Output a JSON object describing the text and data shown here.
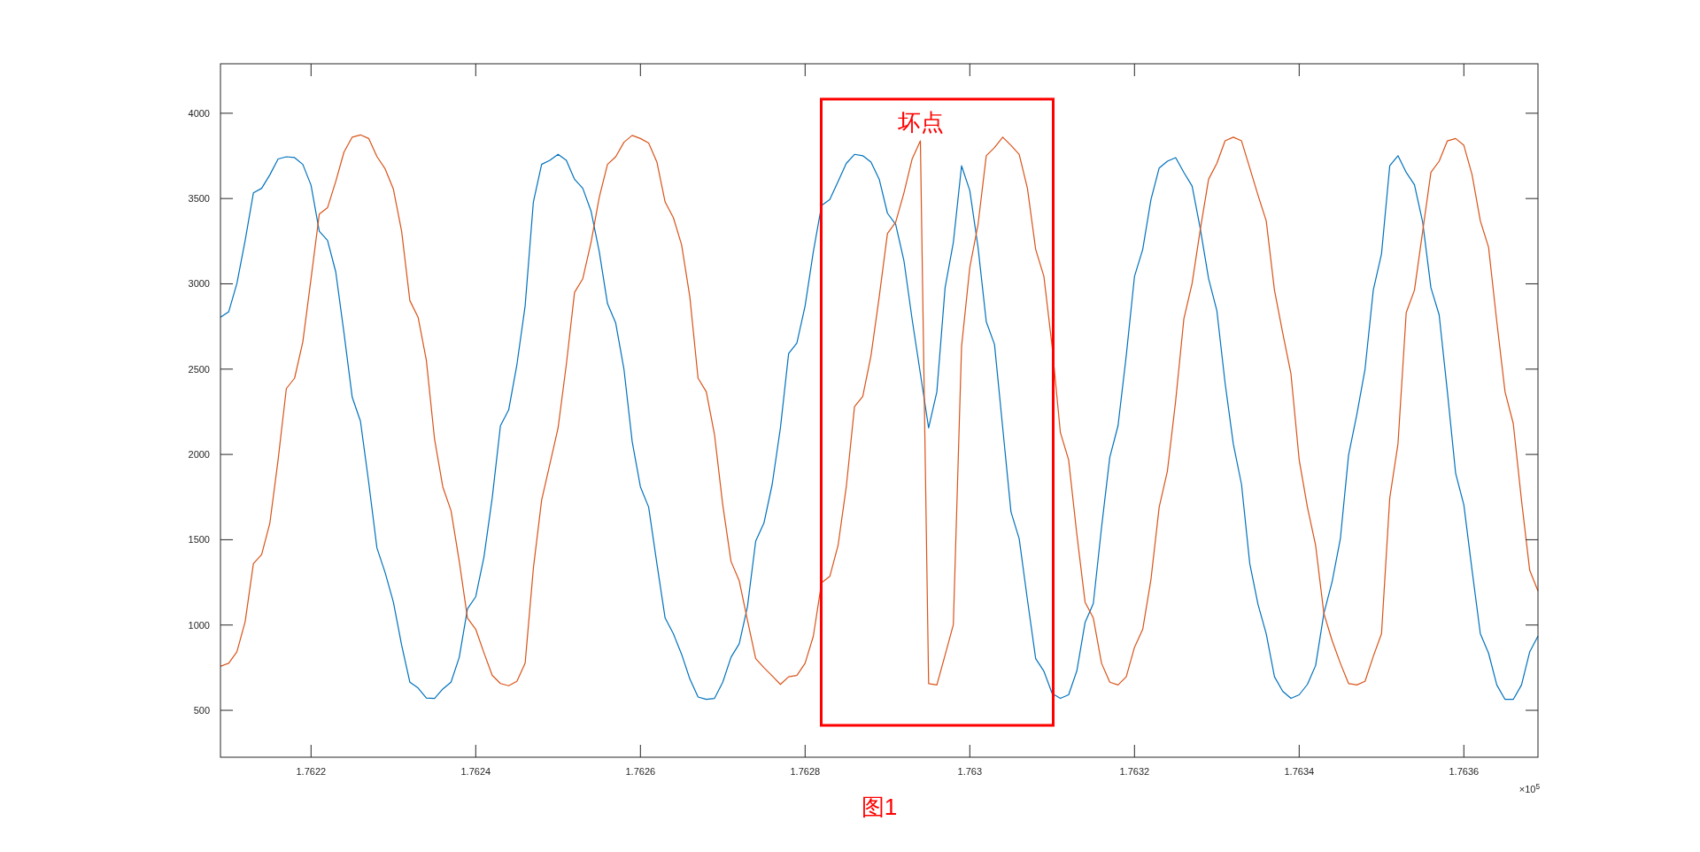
{
  "chart_data": {
    "type": "line",
    "x": [
      1.76209,
      1.7621,
      1.76211,
      1.76212,
      1.76213,
      1.76214,
      1.76215,
      1.76216,
      1.76217,
      1.76218,
      1.76219,
      1.7622,
      1.76221,
      1.76222,
      1.76223,
      1.76224,
      1.76225,
      1.76226,
      1.76227,
      1.76228,
      1.76229,
      1.7623,
      1.76231,
      1.76232,
      1.76233,
      1.76234,
      1.76235,
      1.76236,
      1.76237,
      1.76238,
      1.76239,
      1.7624,
      1.76241,
      1.76242,
      1.76243,
      1.76244,
      1.76245,
      1.76246,
      1.76247,
      1.76248,
      1.76249,
      1.7625,
      1.76251,
      1.76252,
      1.76253,
      1.76254,
      1.76255,
      1.76256,
      1.76257,
      1.76258,
      1.76259,
      1.7626,
      1.76261,
      1.76262,
      1.76263,
      1.76264,
      1.76265,
      1.76266,
      1.76267,
      1.76268,
      1.76269,
      1.7627,
      1.76271,
      1.76272,
      1.76273,
      1.76274,
      1.76275,
      1.76276,
      1.76277,
      1.76278,
      1.76279,
      1.7628,
      1.76281,
      1.76282,
      1.76283,
      1.76284,
      1.76285,
      1.76286,
      1.76287,
      1.76288,
      1.76289,
      1.7629,
      1.76291,
      1.76292,
      1.76293,
      1.76294,
      1.76295,
      1.76296,
      1.76297,
      1.76298,
      1.76299,
      1.763,
      1.76301,
      1.76302,
      1.76303,
      1.76304,
      1.76305,
      1.76306,
      1.76307,
      1.76308,
      1.76309,
      1.7631,
      1.76311,
      1.76312,
      1.76313,
      1.76314,
      1.76315,
      1.76316,
      1.76317,
      1.76318,
      1.76319,
      1.7632,
      1.76321,
      1.76322,
      1.76323,
      1.76324,
      1.76325,
      1.76326,
      1.76327,
      1.76328,
      1.76329,
      1.7633,
      1.76331,
      1.76332,
      1.76333,
      1.76334,
      1.76335,
      1.76336,
      1.76337,
      1.76338,
      1.76339,
      1.7634,
      1.76341,
      1.76342,
      1.76343,
      1.76344,
      1.76345,
      1.76346,
      1.76347,
      1.76348,
      1.76349,
      1.7635,
      1.76351,
      1.76352,
      1.76353,
      1.76354,
      1.76355,
      1.76356,
      1.76357,
      1.76358,
      1.76359,
      1.7636,
      1.76361,
      1.76362,
      1.76363,
      1.76364,
      1.76365,
      1.76366,
      1.76367,
      1.76368,
      1.76369
    ],
    "series": [
      {
        "color": "#0072bd",
        "values": [
          2804,
          2836,
          3003,
          3255,
          3533,
          3560,
          3639,
          3732,
          3745,
          3740,
          3700,
          3578,
          3308,
          3255,
          3070,
          2712,
          2335,
          2195,
          1837,
          1452,
          1307,
          1134,
          882,
          665,
          631,
          572,
          570,
          625,
          665,
          811,
          1095,
          1166,
          1399,
          1744,
          2168,
          2261,
          2526,
          2871,
          3480,
          3700,
          3724,
          3759,
          3724,
          3613,
          3560,
          3427,
          3189,
          2884,
          2770,
          2500,
          2075,
          1810,
          1691,
          1360,
          1041,
          949,
          829,
          684,
          578,
          564,
          570,
          665,
          811,
          890,
          1108,
          1492,
          1598,
          1824,
          2155,
          2592,
          2653,
          2871,
          3189,
          3459,
          3494,
          3600,
          3706,
          3759,
          3751,
          3714,
          3613,
          3414,
          3348,
          3136,
          2791,
          2473,
          2155,
          2367,
          2977,
          3242,
          3692,
          3547,
          3215,
          2778,
          2645,
          2155,
          1664,
          1505,
          1148,
          803,
          729,
          599,
          570,
          591,
          731,
          1015,
          1126,
          1572,
          1983,
          2168,
          2579,
          3043,
          3202,
          3494,
          3679,
          3719,
          3740,
          3653,
          3573,
          3321,
          3030,
          2844,
          2420,
          2062,
          1824,
          1360,
          1121,
          949,
          697,
          612,
          570,
          591,
          652,
          763,
          1068,
          1254,
          1505,
          1996,
          2234,
          2500,
          2963,
          3176,
          3692,
          3751,
          3653,
          3581,
          3361,
          2977,
          2818,
          2367,
          1890,
          1704,
          1320,
          949,
          835,
          649,
          564,
          564,
          649,
          843,
          935
        ]
      },
      {
        "color": "#d95319",
        "values": [
          758,
          776,
          843,
          1020,
          1360,
          1413,
          1598,
          1969,
          2386,
          2447,
          2659,
          3030,
          3409,
          3446,
          3600,
          3772,
          3860,
          3873,
          3852,
          3746,
          3674,
          3555,
          3308,
          2902,
          2804,
          2553,
          2089,
          1810,
          1670,
          1373,
          1041,
          975,
          837,
          705,
          657,
          644,
          670,
          776,
          1333,
          1731,
          1943,
          2155,
          2526,
          2950,
          3030,
          3242,
          3507,
          3700,
          3745,
          3830,
          3870,
          3852,
          3825,
          3714,
          3480,
          3388,
          3229,
          2924,
          2447,
          2367,
          2115,
          1704,
          1373,
          1259,
          1028,
          803,
          750,
          702,
          652,
          697,
          705,
          776,
          935,
          1248,
          1285,
          1466,
          1810,
          2280,
          2340,
          2579,
          2924,
          3295,
          3361,
          3533,
          3732,
          3838,
          657,
          649,
          824,
          1002,
          2632,
          3096,
          3348,
          3751,
          3799,
          3860,
          3812,
          3759,
          3560,
          3202,
          3043,
          2632,
          2128,
          1969,
          1532,
          1134,
          1041,
          776,
          665,
          649,
          697,
          869,
          975,
          1267,
          1691,
          1903,
          2314,
          2796,
          3003,
          3321,
          3613,
          3706,
          3838,
          3860,
          3838,
          3679,
          3520,
          3369,
          2963,
          2712,
          2473,
          1969,
          1691,
          1466,
          1068,
          909,
          776,
          657,
          649,
          670,
          816,
          949,
          1744,
          2062,
          2831,
          2963,
          3308,
          3653,
          3719,
          3838,
          3852,
          3812,
          3639,
          3369,
          3215,
          2778,
          2367,
          2181,
          1731,
          1320,
          1200
        ]
      }
    ],
    "xlim": [
      1.76209,
      1.76369
    ],
    "ylim": [
      225,
      4290
    ],
    "xticks": [
      1.7622,
      1.7624,
      1.7626,
      1.7628,
      1.763,
      1.7632,
      1.7634,
      1.7636
    ],
    "yticks": [
      500,
      1000,
      1500,
      2000,
      2500,
      3000,
      3500,
      4000
    ],
    "annotations": [
      {
        "text": "坏点",
        "x": 1.76294,
        "y": 3838
      },
      "图1",
      "×10$^{5}$"
    ]
  }
}
